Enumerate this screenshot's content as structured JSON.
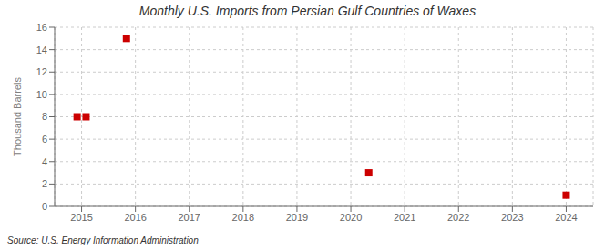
{
  "chart_data": {
    "type": "scatter",
    "title": "Monthly U.S. Imports from Persian Gulf Countries of Waxes",
    "ylabel": "Thousand Barrels",
    "annotations": [
      "Source: U.S. Energy Information Administration"
    ],
    "x": [
      2014.917,
      2015.083,
      2015.833,
      2020.333,
      2024.0
    ],
    "values": [
      8,
      8,
      15,
      3,
      1
    ],
    "color": "#cc0000",
    "marker": "square",
    "xlim": [
      2014.5,
      2024.5
    ],
    "ylim": [
      0,
      16
    ],
    "xticks": [
      2015,
      2016,
      2017,
      2018,
      2019,
      2020,
      2021,
      2022,
      2023,
      2024
    ],
    "yticks": [
      0,
      2,
      4,
      6,
      8,
      10,
      12,
      14,
      16
    ],
    "grid": true
  }
}
